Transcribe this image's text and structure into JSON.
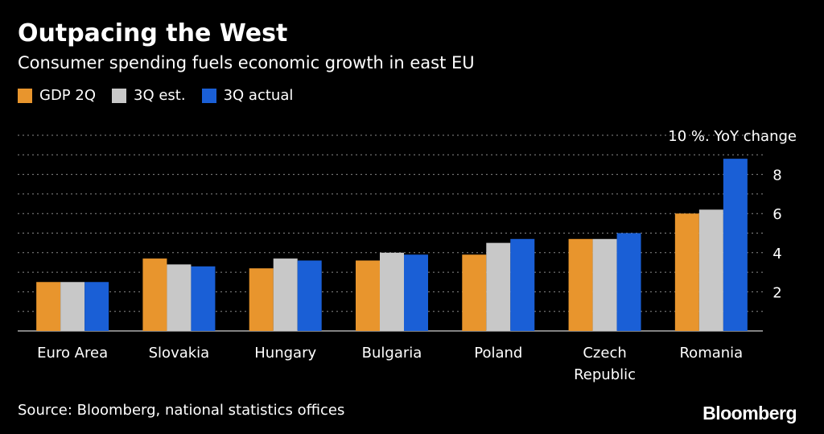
{
  "title": "Outpacing the West",
  "subtitle": "Consumer spending fuels economic growth in east EU",
  "source": "Source: Bloomberg, national statistics offices",
  "logo": "Bloomberg",
  "colors": {
    "background": "#000000",
    "gdp_2q": "#e8952d",
    "est_3q": "#c8c8c8",
    "actual_3q": "#1a5fd6",
    "grid": "#8a8a8a"
  },
  "chart_data": {
    "type": "bar",
    "categories": [
      "Euro Area",
      "Slovakia",
      "Hungary",
      "Bulgaria",
      "Poland",
      "Czech Republic",
      "Romania"
    ],
    "category_lines": [
      [
        "Euro Area"
      ],
      [
        "Slovakia"
      ],
      [
        "Hungary"
      ],
      [
        "Bulgaria"
      ],
      [
        "Poland"
      ],
      [
        "Czech",
        "Republic"
      ],
      [
        "Romania"
      ]
    ],
    "series": [
      {
        "name": "GDP 2Q",
        "color": "#e8952d",
        "values": [
          2.5,
          3.7,
          3.2,
          3.6,
          3.9,
          4.7,
          6.0
        ]
      },
      {
        "name": "3Q est.",
        "color": "#c8c8c8",
        "values": [
          2.5,
          3.4,
          3.7,
          4.0,
          4.5,
          4.7,
          6.2
        ]
      },
      {
        "name": "3Q actual",
        "color": "#1a5fd6",
        "values": [
          2.5,
          3.3,
          3.6,
          3.9,
          4.7,
          5.0,
          8.8
        ]
      }
    ],
    "ylim": [
      0,
      10
    ],
    "y_ticks": [
      2,
      4,
      6,
      8
    ],
    "y_top_label": "10 %. YoY change",
    "grid": true,
    "legend_position": "top-left"
  }
}
